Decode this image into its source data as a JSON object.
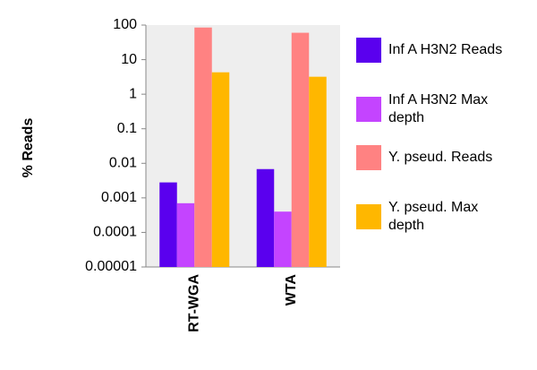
{
  "chart_data": {
    "type": "bar",
    "y_label": "% Reads",
    "log_scale": true,
    "categories": [
      "RT-WGA",
      "WTA"
    ],
    "series": [
      {
        "name": "Inf A H3N2 Reads",
        "color": "#5a00ee",
        "values": [
          0.0028,
          0.0068
        ]
      },
      {
        "name": "Inf A H3N2 Max depth",
        "color": "#c444ff",
        "values": [
          0.0007,
          0.0004
        ]
      },
      {
        "name": "Y. pseud. Reads",
        "color": "#ff8282",
        "values": [
          85,
          60
        ]
      },
      {
        "name": "Y. pseud. Max depth",
        "color": "#ffb700",
        "values": [
          4.3,
          3.2
        ]
      }
    ],
    "ylim": [
      1e-05,
      100
    ],
    "yticks": [
      100,
      10,
      1,
      0.1,
      0.01,
      0.001,
      0.0001,
      {
        "value": 1e-05,
        "label": "0.00001"
      }
    ],
    "plot_background": "#eeeeee"
  }
}
